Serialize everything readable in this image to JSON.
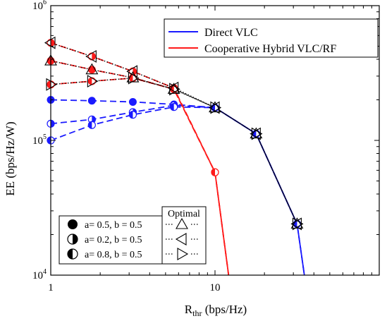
{
  "chart_data": {
    "type": "line",
    "xlabel_main": "R",
    "xlabel_sub": "thr",
    "xlabel_unit": " (bps/Hz)",
    "ylabel": "EE (bps/Hz/W)",
    "xscale": "log",
    "yscale": "log",
    "xlim": [
      1,
      100
    ],
    "ylim": [
      10000,
      1000000
    ],
    "x_ticks": [
      {
        "v": 1,
        "label": "1"
      },
      {
        "v": 10,
        "label": "10"
      }
    ],
    "y_ticks": [
      {
        "v": 10000,
        "base": "10",
        "exp": "4"
      },
      {
        "v": 100000,
        "base": "10",
        "exp": "5"
      },
      {
        "v": 1000000,
        "base": "10",
        "exp": "6"
      }
    ],
    "legend_lines": [
      {
        "name": "Direct VLC",
        "color": "#1a1aff"
      },
      {
        "name": "Cooperative Hybrid VLC/RF",
        "color": "#ff1a1a"
      }
    ],
    "legend_params": {
      "title": "Optimal",
      "items": [
        {
          "label": "a= 0.5, b = 0.5",
          "fill": "full",
          "optimal": "triangle-up"
        },
        {
          "label": "a= 0.2, b = 0.5",
          "fill": "right",
          "optimal": "triangle-left"
        },
        {
          "label": "a= 0.8, b = 0.5",
          "fill": "left",
          "optimal": "triangle-right"
        }
      ]
    },
    "series": [
      {
        "tech": "vlc",
        "case": "a=0.5,b=0.5",
        "marker": "circle-full",
        "x": [
          1,
          1.78,
          3.16,
          5.62,
          10,
          17.8,
          31.6,
          35
        ],
        "y": [
          200000,
          197000,
          193000,
          185000,
          175000,
          112000,
          24000,
          10000
        ]
      },
      {
        "tech": "vlc",
        "case": "a=0.2,b=0.5",
        "marker": "circle-right",
        "x": [
          1,
          1.78,
          3.16,
          5.62,
          10,
          17.8,
          31.6,
          35
        ],
        "y": [
          133000,
          143000,
          162000,
          182000,
          175000,
          112000,
          24000,
          10000
        ]
      },
      {
        "tech": "vlc",
        "case": "a=0.8,b=0.5",
        "marker": "circle-left",
        "x": [
          1,
          1.78,
          3.16,
          5.62,
          10,
          17.8,
          31.6,
          35
        ],
        "y": [
          100000,
          130000,
          155000,
          177000,
          175000,
          112000,
          24000,
          10000
        ]
      },
      {
        "tech": "hybrid",
        "case": "a=0.5,b=0.5",
        "marker": "circle-full",
        "x": [
          1,
          1.78,
          3.16,
          5.62,
          10,
          12.1
        ],
        "y": [
          390000,
          335000,
          292000,
          240000,
          58000,
          10000
        ]
      },
      {
        "tech": "hybrid",
        "case": "a=0.2,b=0.5",
        "marker": "circle-right",
        "x": [
          1,
          1.78,
          3.16,
          5.62,
          10,
          12.1
        ],
        "y": [
          530000,
          420000,
          325000,
          245000,
          58000,
          10000
        ]
      },
      {
        "tech": "hybrid",
        "case": "a=0.8,b=0.5",
        "marker": "circle-left",
        "x": [
          1,
          1.78,
          3.16,
          5.62,
          10,
          12.1
        ],
        "y": [
          260000,
          275000,
          290000,
          240000,
          58000,
          10000
        ]
      },
      {
        "tech": "optimal",
        "case": "a=0.5,b=0.5",
        "marker": "triangle-up",
        "x": [
          1,
          1.78,
          3.16,
          5.62,
          10,
          17.8,
          31.6
        ],
        "y": [
          390000,
          335000,
          292000,
          240000,
          175000,
          112000,
          24000
        ]
      },
      {
        "tech": "optimal",
        "case": "a=0.2,b=0.5",
        "marker": "triangle-left",
        "x": [
          1,
          1.78,
          3.16,
          5.62,
          10,
          17.8,
          31.6
        ],
        "y": [
          530000,
          420000,
          325000,
          245000,
          175000,
          112000,
          24000
        ]
      },
      {
        "tech": "optimal",
        "case": "a=0.8,b=0.5",
        "marker": "triangle-right",
        "x": [
          1,
          1.78,
          3.16,
          5.62,
          10,
          17.8,
          31.6
        ],
        "y": [
          260000,
          275000,
          290000,
          240000,
          175000,
          112000,
          24000
        ]
      }
    ],
    "colors": {
      "vlc": "#1a1aff",
      "hybrid": "#ff1a1a",
      "optimal": "#000000",
      "axis": "#000000"
    }
  }
}
